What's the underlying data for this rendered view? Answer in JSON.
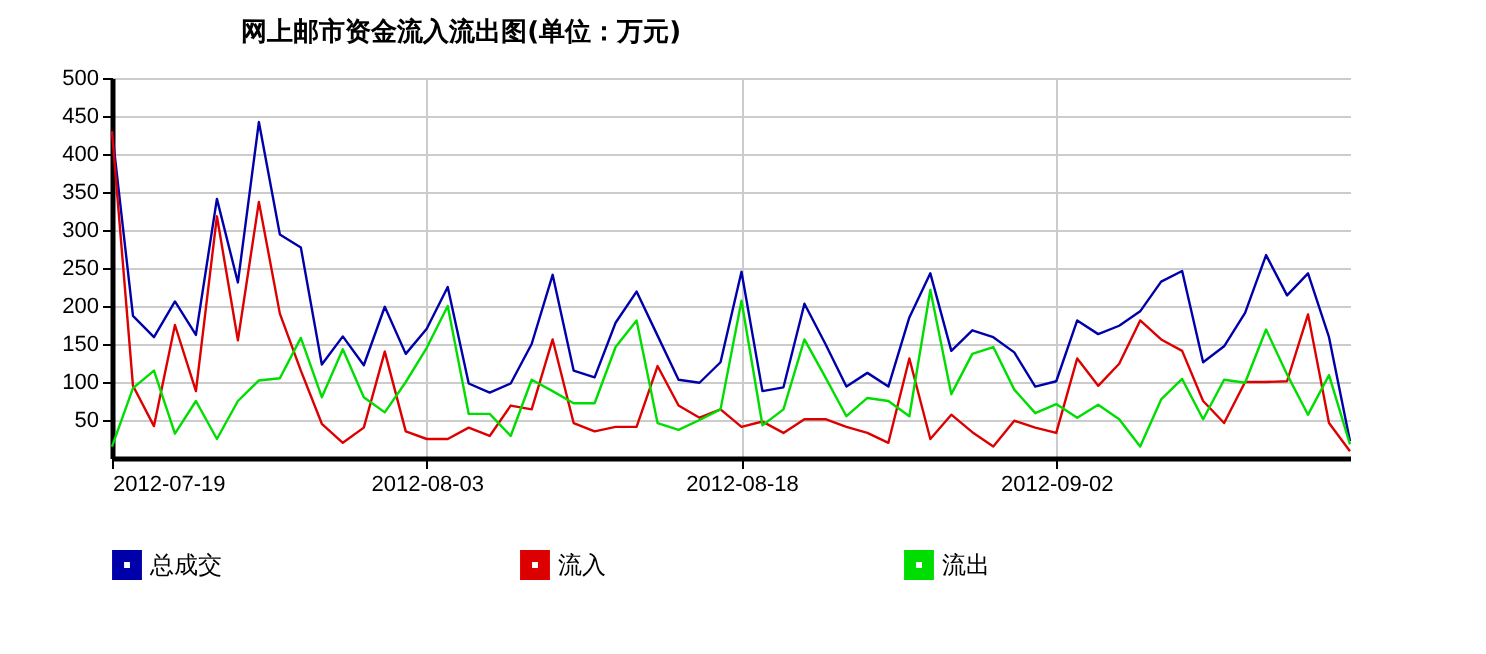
{
  "chart_data": {
    "type": "line",
    "title": "网上邮市资金流入流出图(单位：万元)",
    "x": [
      "2012-07-19",
      "2012-07-20",
      "2012-07-21",
      "2012-07-22",
      "2012-07-23",
      "2012-07-24",
      "2012-07-25",
      "2012-07-26",
      "2012-07-27",
      "2012-07-28",
      "2012-07-29",
      "2012-07-30",
      "2012-07-31",
      "2012-08-01",
      "2012-08-02",
      "2012-08-03",
      "2012-08-04",
      "2012-08-05",
      "2012-08-06",
      "2012-08-07",
      "2012-08-08",
      "2012-08-09",
      "2012-08-10",
      "2012-08-11",
      "2012-08-12",
      "2012-08-13",
      "2012-08-14",
      "2012-08-15",
      "2012-08-16",
      "2012-08-17",
      "2012-08-18",
      "2012-08-19",
      "2012-08-20",
      "2012-08-21",
      "2012-08-22",
      "2012-08-23",
      "2012-08-24",
      "2012-08-25",
      "2012-08-26",
      "2012-08-27",
      "2012-08-28",
      "2012-08-29",
      "2012-08-30",
      "2012-08-31",
      "2012-09-01",
      "2012-09-02",
      "2012-09-03",
      "2012-09-04",
      "2012-09-05",
      "2012-09-06",
      "2012-09-07",
      "2012-09-08",
      "2012-09-09",
      "2012-09-10",
      "2012-09-11",
      "2012-09-12",
      "2012-09-13",
      "2012-09-14",
      "2012-09-15",
      "2012-09-16"
    ],
    "series": [
      {
        "name": "总成交",
        "color": "#0000aa",
        "values": [
          430,
          187,
          159,
          206,
          162,
          341,
          231,
          442,
          294,
          277,
          123,
          160,
          122,
          199,
          137,
          170,
          225,
          98,
          86,
          98,
          150,
          241,
          115,
          106,
          178,
          219,
          161,
          103,
          99,
          126,
          245,
          88,
          93,
          203,
          150,
          94,
          112,
          94,
          185,
          243,
          141,
          168,
          159,
          139,
          94,
          101,
          181,
          163,
          174,
          193,
          232,
          246,
          126,
          147,
          191,
          267,
          214,
          243,
          159,
          22
        ]
      },
      {
        "name": "流入",
        "color": "#dd0000",
        "values": [
          430,
          95,
          42,
          175,
          88,
          318,
          155,
          337,
          190,
          115,
          45,
          20,
          40,
          140,
          35,
          25,
          25,
          40,
          29,
          69,
          64,
          156,
          46,
          35,
          41,
          41,
          121,
          69,
          53,
          64,
          41,
          48,
          33,
          51,
          51,
          41,
          33,
          20,
          131,
          25,
          57,
          34,
          15,
          49,
          40,
          33,
          131,
          95,
          124,
          181,
          156,
          141,
          75,
          46,
          100,
          100,
          101,
          189,
          46,
          9
        ]
      },
      {
        "name": "流出",
        "color": "#00dd00",
        "values": [
          15,
          92,
          115,
          32,
          75,
          25,
          75,
          102,
          105,
          158,
          80,
          143,
          80,
          60,
          100,
          145,
          200,
          58,
          58,
          29,
          103,
          88,
          72,
          72,
          146,
          181,
          46,
          37,
          50,
          64,
          207,
          43,
          64,
          156,
          106,
          55,
          79,
          75,
          55,
          221,
          84,
          137,
          146,
          90,
          59,
          71,
          53,
          70,
          51,
          15,
          77,
          104,
          51,
          103,
          99,
          169,
          110,
          57,
          109,
          18
        ]
      }
    ],
    "xlim": [
      "2012-07-19",
      "2012-09-16"
    ],
    "xticks": [
      "2012-07-19",
      "2012-08-03",
      "2012-08-18",
      "2012-09-02"
    ],
    "ylim": [
      0,
      500
    ],
    "yticks": [
      50,
      100,
      150,
      200,
      250,
      300,
      350,
      400,
      450,
      500
    ],
    "grid": true,
    "legend": "bottom"
  }
}
